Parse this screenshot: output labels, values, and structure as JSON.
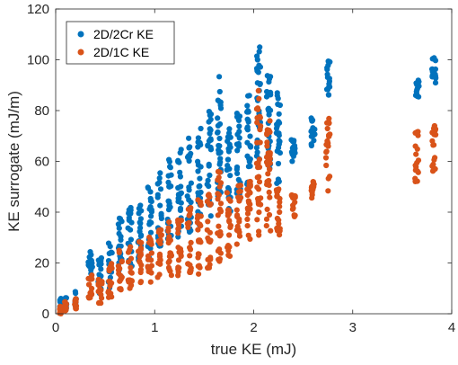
{
  "chart_data": {
    "type": "scatter",
    "xlabel": "true KE (mJ)",
    "ylabel": "KE surrogate (mJ/m)",
    "xlim": [
      0,
      4
    ],
    "ylim": [
      0,
      120
    ],
    "xticks": [
      0,
      1,
      2,
      3,
      4
    ],
    "yticks": [
      0,
      20,
      40,
      60,
      80,
      100,
      120
    ],
    "xtick_labels": [
      "0",
      "1",
      "2",
      "3",
      "4"
    ],
    "ytick_labels": [
      "0",
      "20",
      "40",
      "60",
      "80",
      "100",
      "120"
    ],
    "grid": false,
    "legend_position": "top-left",
    "series": [
      {
        "name": "2D/2Cr KE",
        "color": "#0072BD",
        "clusters": [
          {
            "x": 0.05,
            "y": [
              0,
              6
            ]
          },
          {
            "x": 0.1,
            "y": [
              1,
              7
            ]
          },
          {
            "x": 0.2,
            "y": [
              3,
              9
            ]
          },
          {
            "x": 0.35,
            "y": [
              12,
              25
            ]
          },
          {
            "x": 0.45,
            "y": [
              8,
              22
            ]
          },
          {
            "x": 0.55,
            "y": [
              10,
              30
            ]
          },
          {
            "x": 0.65,
            "y": [
              14,
              38
            ]
          },
          {
            "x": 0.75,
            "y": [
              18,
              42
            ]
          },
          {
            "x": 0.85,
            "y": [
              20,
              45
            ]
          },
          {
            "x": 0.95,
            "y": [
              22,
              50
            ]
          },
          {
            "x": 1.05,
            "y": [
              25,
              56
            ]
          },
          {
            "x": 1.15,
            "y": [
              28,
              62
            ]
          },
          {
            "x": 1.25,
            "y": [
              30,
              66
            ]
          },
          {
            "x": 1.35,
            "y": [
              32,
              70
            ]
          },
          {
            "x": 1.45,
            "y": [
              34,
              73
            ]
          },
          {
            "x": 1.55,
            "y": [
              38,
              80
            ]
          },
          {
            "x": 1.65,
            "y": [
              45,
              95
            ]
          },
          {
            "x": 1.75,
            "y": [
              40,
              75
            ]
          },
          {
            "x": 1.85,
            "y": [
              45,
              82
            ]
          },
          {
            "x": 1.95,
            "y": [
              50,
              90
            ]
          },
          {
            "x": 2.05,
            "y": [
              60,
              107
            ]
          },
          {
            "x": 2.15,
            "y": [
              55,
              95
            ]
          },
          {
            "x": 2.25,
            "y": [
              50,
              88
            ]
          },
          {
            "x": 2.4,
            "y": [
              60,
              70
            ]
          },
          {
            "x": 2.6,
            "y": [
              65,
              78
            ]
          },
          {
            "x": 2.75,
            "y": [
              85,
              100
            ]
          },
          {
            "x": 3.65,
            "y": [
              85,
              93
            ]
          },
          {
            "x": 3.82,
            "y": [
              90,
              102
            ]
          }
        ]
      },
      {
        "name": "2D/1C KE",
        "color": "#D95319",
        "clusters": [
          {
            "x": 0.05,
            "y": [
              0,
              3
            ]
          },
          {
            "x": 0.1,
            "y": [
              1,
              5
            ]
          },
          {
            "x": 0.2,
            "y": [
              2,
              6
            ]
          },
          {
            "x": 0.35,
            "y": [
              6,
              16
            ]
          },
          {
            "x": 0.45,
            "y": [
              4,
              14
            ]
          },
          {
            "x": 0.55,
            "y": [
              6,
              20
            ]
          },
          {
            "x": 0.65,
            "y": [
              8,
              25
            ]
          },
          {
            "x": 0.75,
            "y": [
              10,
              27
            ]
          },
          {
            "x": 0.85,
            "y": [
              12,
              30
            ]
          },
          {
            "x": 0.95,
            "y": [
              12,
              33
            ]
          },
          {
            "x": 1.05,
            "y": [
              14,
              35
            ]
          },
          {
            "x": 1.15,
            "y": [
              15,
              38
            ]
          },
          {
            "x": 1.25,
            "y": [
              15,
              40
            ]
          },
          {
            "x": 1.35,
            "y": [
              16,
              42
            ]
          },
          {
            "x": 1.45,
            "y": [
              15,
              45
            ]
          },
          {
            "x": 1.55,
            "y": [
              18,
              48
            ]
          },
          {
            "x": 1.65,
            "y": [
              20,
              58
            ]
          },
          {
            "x": 1.75,
            "y": [
              22,
              48
            ]
          },
          {
            "x": 1.85,
            "y": [
              25,
              52
            ]
          },
          {
            "x": 1.95,
            "y": [
              28,
              56
            ]
          },
          {
            "x": 2.05,
            "y": [
              30,
              88
            ]
          },
          {
            "x": 2.15,
            "y": [
              28,
              78
            ]
          },
          {
            "x": 2.25,
            "y": [
              30,
              60
            ]
          },
          {
            "x": 2.4,
            "y": [
              38,
              48
            ]
          },
          {
            "x": 2.6,
            "y": [
              45,
              52
            ]
          },
          {
            "x": 2.75,
            "y": [
              48,
              77
            ]
          },
          {
            "x": 3.65,
            "y": [
              52,
              72
            ]
          },
          {
            "x": 3.82,
            "y": [
              54,
              74
            ]
          }
        ]
      }
    ]
  }
}
